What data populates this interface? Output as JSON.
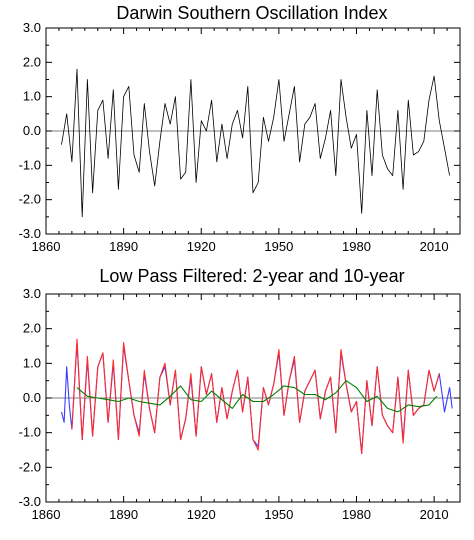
{
  "chart_data": [
    {
      "type": "line",
      "title": "Darwin Southern Oscillation Index",
      "xlabel": "",
      "ylabel": "",
      "xlim": [
        1860,
        2020
      ],
      "ylim": [
        -3.0,
        3.0
      ],
      "x_ticks": [
        "1860",
        "1890",
        "1920",
        "1950",
        "1980",
        "2010"
      ],
      "y_ticks": [
        "3.0",
        "2.0",
        "1.0",
        "0.0",
        "-1.0",
        "-2.0",
        "-3.0"
      ],
      "reference_line": 0.0,
      "grid": false,
      "legend": "none",
      "series": [
        {
          "color": "#000000",
          "x": [
            1866,
            1868,
            1870,
            1872,
            1874,
            1876,
            1878,
            1880,
            1882,
            1884,
            1886,
            1888,
            1890,
            1892,
            1894,
            1896,
            1898,
            1900,
            1902,
            1904,
            1906,
            1908,
            1910,
            1912,
            1914,
            1916,
            1918,
            1920,
            1922,
            1924,
            1926,
            1928,
            1930,
            1932,
            1934,
            1936,
            1938,
            1940,
            1942,
            1944,
            1946,
            1948,
            1950,
            1952,
            1954,
            1956,
            1958,
            1960,
            1962,
            1964,
            1966,
            1968,
            1970,
            1972,
            1974,
            1976,
            1978,
            1980,
            1982,
            1984,
            1986,
            1988,
            1990,
            1992,
            1994,
            1996,
            1998,
            2000,
            2002,
            2004,
            2006,
            2008,
            2010,
            2012,
            2014,
            2016
          ],
          "values": [
            -0.4,
            0.5,
            -0.9,
            1.8,
            -2.5,
            1.5,
            -1.8,
            0.6,
            0.9,
            -0.8,
            1.2,
            -1.7,
            1.0,
            1.3,
            -0.7,
            -1.2,
            0.8,
            -0.6,
            -1.6,
            -0.3,
            0.8,
            0.2,
            1.0,
            -1.4,
            -1.2,
            1.5,
            -1.5,
            0.3,
            0.0,
            0.9,
            -0.9,
            0.2,
            -0.8,
            0.2,
            0.6,
            -0.2,
            1.3,
            -1.8,
            -1.5,
            0.4,
            -0.3,
            0.4,
            1.5,
            -0.3,
            0.5,
            1.3,
            -0.9,
            0.2,
            0.4,
            0.8,
            -0.8,
            -0.2,
            0.6,
            -1.3,
            1.5,
            0.4,
            -0.5,
            -0.1,
            -2.4,
            0.6,
            -1.3,
            1.2,
            -0.7,
            -1.1,
            -1.3,
            0.6,
            -1.7,
            0.9,
            -0.7,
            -0.6,
            -0.3,
            0.9,
            1.6,
            0.3,
            -0.5,
            -1.3
          ]
        }
      ]
    },
    {
      "type": "line",
      "title": "Low Pass Filtered: 2-year and 10-year",
      "xlabel": "",
      "ylabel": "",
      "xlim": [
        1860,
        2020
      ],
      "ylim": [
        -3.0,
        3.0
      ],
      "x_ticks": [
        "1860",
        "1890",
        "1920",
        "1950",
        "1980",
        "2010"
      ],
      "y_ticks": [
        "3.0",
        "2.0",
        "1.0",
        "0.0",
        "-1.0",
        "-2.0",
        "-3.0"
      ],
      "reference_line": 0.0,
      "grid": false,
      "legend": "none",
      "series": [
        {
          "color": "#3b3bff",
          "x": [
            1866,
            1867,
            1868,
            1869,
            1870,
            1872,
            1874,
            1876,
            1878,
            1880,
            1882,
            1884,
            1886,
            1888,
            1890,
            1892,
            1894,
            1896,
            1898,
            1900,
            1902,
            1904,
            1906,
            1908,
            1910,
            1912,
            1914,
            1916,
            1918,
            1920,
            1922,
            1924,
            1926,
            1928,
            1930,
            1932,
            1934,
            1936,
            1938,
            1940,
            1942,
            1944,
            1946,
            1948,
            1950,
            1952,
            1954,
            1956,
            1958,
            1960,
            1962,
            1964,
            1966,
            1968,
            1970,
            1972,
            1974,
            1976,
            1978,
            1980,
            1982,
            1984,
            1986,
            1988,
            1990,
            1992,
            1994,
            1996,
            1998,
            2000,
            2002,
            2004,
            2006,
            2008,
            2010,
            2012,
            2014,
            2016,
            2017
          ],
          "values": [
            -0.4,
            -0.7,
            0.9,
            -0.2,
            -0.9,
            1.6,
            -1.2,
            1.1,
            -1.1,
            0.9,
            1.3,
            -0.7,
            1.0,
            -1.2,
            1.5,
            0.5,
            -0.5,
            -1.0,
            0.7,
            -0.3,
            -1.0,
            0.6,
            0.9,
            -0.2,
            0.8,
            -1.2,
            -0.6,
            0.6,
            -1.1,
            0.9,
            0.1,
            0.7,
            -0.7,
            0.3,
            -0.6,
            0.2,
            0.8,
            -0.4,
            0.6,
            -1.2,
            -1.4,
            0.3,
            -0.2,
            0.4,
            1.3,
            -0.5,
            0.5,
            1.1,
            -0.7,
            0.2,
            0.5,
            0.8,
            -0.6,
            0.2,
            0.6,
            -1.0,
            1.3,
            0.4,
            -0.4,
            -0.1,
            -1.6,
            0.5,
            -0.8,
            0.9,
            -0.5,
            -0.8,
            -1.0,
            0.6,
            -1.2,
            0.8,
            -0.5,
            -0.3,
            -0.2,
            0.8,
            0.2,
            0.7,
            -0.4,
            0.3,
            -0.3
          ]
        },
        {
          "color": "#ff2a2a",
          "x": [
            1870,
            1872,
            1874,
            1876,
            1878,
            1880,
            1882,
            1884,
            1886,
            1888,
            1890,
            1892,
            1894,
            1896,
            1898,
            1900,
            1902,
            1904,
            1906,
            1908,
            1910,
            1912,
            1914,
            1916,
            1918,
            1920,
            1922,
            1924,
            1926,
            1928,
            1930,
            1932,
            1934,
            1936,
            1938,
            1940,
            1942,
            1944,
            1946,
            1948,
            1950,
            1952,
            1954,
            1956,
            1958,
            1960,
            1962,
            1964,
            1966,
            1968,
            1970,
            1972,
            1974,
            1976,
            1978,
            1980,
            1982,
            1984,
            1986,
            1988,
            1990,
            1992,
            1994,
            1996,
            1998,
            2000,
            2002,
            2004,
            2006,
            2008,
            2010,
            2012
          ],
          "values": [
            -0.9,
            1.7,
            -1.2,
            1.2,
            -1.1,
            0.9,
            1.3,
            -0.7,
            1.1,
            -1.2,
            1.6,
            0.5,
            -0.5,
            -1.1,
            0.8,
            -0.3,
            -1.0,
            0.6,
            1.0,
            -0.2,
            0.8,
            -1.2,
            -0.6,
            0.7,
            -1.1,
            0.9,
            0.1,
            0.7,
            -0.7,
            0.3,
            -0.6,
            0.2,
            0.8,
            -0.4,
            0.6,
            -1.2,
            -1.5,
            0.3,
            -0.2,
            0.4,
            1.4,
            -0.5,
            0.5,
            1.2,
            -0.7,
            0.2,
            0.5,
            0.8,
            -0.6,
            0.2,
            0.6,
            -1.0,
            1.4,
            0.4,
            -0.4,
            -0.1,
            -1.6,
            0.5,
            -0.8,
            0.9,
            -0.5,
            -0.8,
            -1.0,
            0.6,
            -1.3,
            0.8,
            -0.5,
            -0.3,
            -0.2,
            0.8,
            0.2,
            0.7
          ]
        },
        {
          "color": "#008000",
          "x": [
            1872,
            1876,
            1880,
            1884,
            1888,
            1892,
            1896,
            1900,
            1904,
            1908,
            1912,
            1916,
            1920,
            1924,
            1928,
            1932,
            1936,
            1940,
            1944,
            1948,
            1952,
            1956,
            1960,
            1964,
            1968,
            1972,
            1976,
            1980,
            1984,
            1988,
            1992,
            1996,
            2000,
            2004,
            2008,
            2011
          ],
          "values": [
            0.3,
            0.05,
            0.0,
            -0.05,
            -0.1,
            0.0,
            -0.1,
            -0.15,
            -0.2,
            0.05,
            0.35,
            -0.05,
            -0.1,
            0.2,
            -0.05,
            -0.3,
            0.1,
            -0.1,
            -0.1,
            0.1,
            0.35,
            0.3,
            0.1,
            0.1,
            -0.05,
            0.15,
            0.5,
            0.3,
            -0.1,
            0.05,
            -0.3,
            -0.4,
            -0.2,
            -0.25,
            -0.2,
            0.05
          ]
        }
      ]
    }
  ]
}
